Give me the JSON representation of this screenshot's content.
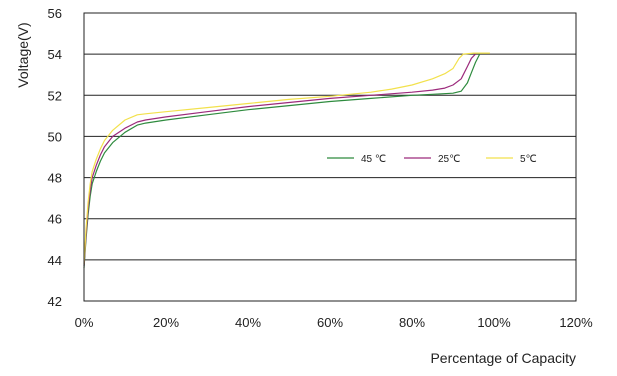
{
  "chart_data": {
    "type": "line",
    "title": "",
    "xlabel": "Percentage of Capacity",
    "ylabel": "Voltage(V)",
    "xlim": [
      0,
      120
    ],
    "ylim": [
      42,
      56
    ],
    "x_ticks": [
      0,
      20,
      40,
      60,
      80,
      100,
      120
    ],
    "x_tick_labels": [
      "0%",
      "20%",
      "40%",
      "60%",
      "80%",
      "100%",
      "120%"
    ],
    "y_ticks": [
      42,
      44,
      46,
      48,
      50,
      52,
      54,
      56
    ],
    "y_tick_labels": [
      "42",
      "44",
      "46",
      "48",
      "50",
      "52",
      "54",
      "56"
    ],
    "grid": "horizontal",
    "legend_position": "inside-right",
    "series": [
      {
        "name": "45 ℃",
        "color": "#2e8b3e",
        "points": [
          [
            0,
            43.6
          ],
          [
            0.5,
            45.0
          ],
          [
            1,
            46.2
          ],
          [
            1.5,
            47.1
          ],
          [
            2,
            47.7
          ],
          [
            3,
            48.3
          ],
          [
            4,
            48.8
          ],
          [
            5,
            49.2
          ],
          [
            7,
            49.7
          ],
          [
            10,
            50.2
          ],
          [
            13,
            50.55
          ],
          [
            15,
            50.65
          ],
          [
            20,
            50.8
          ],
          [
            30,
            51.05
          ],
          [
            40,
            51.3
          ],
          [
            50,
            51.5
          ],
          [
            60,
            51.7
          ],
          [
            70,
            51.85
          ],
          [
            80,
            52.0
          ],
          [
            85,
            52.05
          ],
          [
            90,
            52.1
          ],
          [
            92,
            52.2
          ],
          [
            93.5,
            52.6
          ],
          [
            94.5,
            53.1
          ],
          [
            95.5,
            53.6
          ],
          [
            96.5,
            54.0
          ]
        ]
      },
      {
        "name": "25℃",
        "color": "#9c2a7c",
        "points": [
          [
            0,
            43.7
          ],
          [
            0.5,
            45.2
          ],
          [
            1,
            46.5
          ],
          [
            1.5,
            47.4
          ],
          [
            2,
            48.0
          ],
          [
            3,
            48.6
          ],
          [
            4,
            49.1
          ],
          [
            5,
            49.5
          ],
          [
            7,
            50.0
          ],
          [
            10,
            50.4
          ],
          [
            13,
            50.7
          ],
          [
            15,
            50.8
          ],
          [
            20,
            50.95
          ],
          [
            30,
            51.2
          ],
          [
            40,
            51.45
          ],
          [
            50,
            51.65
          ],
          [
            60,
            51.85
          ],
          [
            70,
            52.0
          ],
          [
            80,
            52.15
          ],
          [
            85,
            52.25
          ],
          [
            88,
            52.35
          ],
          [
            90,
            52.5
          ],
          [
            92,
            52.8
          ],
          [
            93.5,
            53.4
          ],
          [
            94.5,
            53.8
          ],
          [
            95.5,
            54.0
          ]
        ]
      },
      {
        "name": "5℃",
        "color": "#f2e14c",
        "points": [
          [
            0,
            43.8
          ],
          [
            0.5,
            45.5
          ],
          [
            1,
            46.8
          ],
          [
            1.5,
            47.7
          ],
          [
            2,
            48.3
          ],
          [
            3,
            48.9
          ],
          [
            4,
            49.4
          ],
          [
            5,
            49.8
          ],
          [
            7,
            50.3
          ],
          [
            10,
            50.8
          ],
          [
            13,
            51.05
          ],
          [
            15,
            51.1
          ],
          [
            20,
            51.2
          ],
          [
            30,
            51.4
          ],
          [
            40,
            51.6
          ],
          [
            50,
            51.8
          ],
          [
            60,
            51.95
          ],
          [
            70,
            52.15
          ],
          [
            75,
            52.3
          ],
          [
            80,
            52.5
          ],
          [
            85,
            52.8
          ],
          [
            88,
            53.05
          ],
          [
            90,
            53.3
          ],
          [
            91.5,
            53.8
          ],
          [
            92.5,
            54.0
          ],
          [
            95,
            54.05
          ],
          [
            99,
            54.05
          ]
        ]
      }
    ]
  }
}
